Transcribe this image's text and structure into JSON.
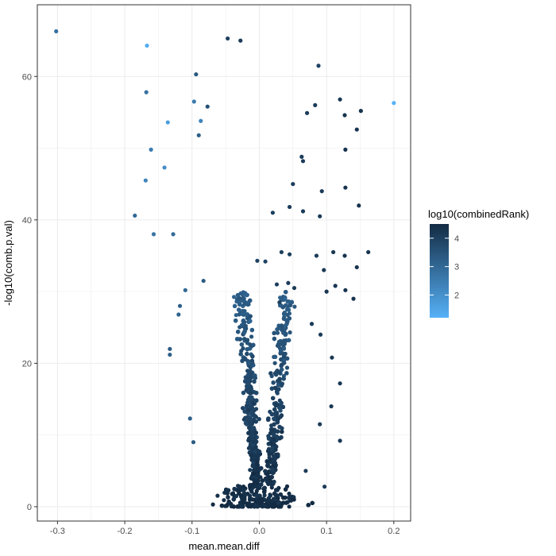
{
  "chart_data": {
    "type": "scatter",
    "title": "",
    "xlabel": "mean.mean.diff",
    "ylabel": "-log10(comb.p.val)",
    "xlim": [
      -0.33,
      0.225
    ],
    "ylim": [
      -2,
      70
    ],
    "x_ticks": [
      -0.3,
      -0.2,
      -0.1,
      0.0,
      0.1,
      0.2
    ],
    "x_tick_labels": [
      "-0.3",
      "-0.2",
      "-0.1",
      "0.0",
      "0.1",
      "0.2"
    ],
    "y_ticks": [
      0,
      20,
      40,
      60
    ],
    "y_tick_labels": [
      "0",
      "20",
      "40",
      "60"
    ],
    "grid": true,
    "legend": {
      "title": "log10(combinedRank)",
      "placement": "right",
      "ticks": [
        2,
        3,
        4
      ],
      "tick_labels": [
        "2",
        "3",
        "4"
      ],
      "range": [
        1.2,
        4.5
      ],
      "color_low": "#56B1F7",
      "color_high": "#132B43"
    },
    "points": [
      {
        "x": -0.302,
        "y": 66.3,
        "c": 2.8
      },
      {
        "x": -0.167,
        "y": 64.3,
        "c": 1.3
      },
      {
        "x": -0.047,
        "y": 65.3,
        "c": 4.0
      },
      {
        "x": -0.028,
        "y": 65.0,
        "c": 4.1
      },
      {
        "x": 0.088,
        "y": 61.5,
        "c": 3.9
      },
      {
        "x": -0.094,
        "y": 60.3,
        "c": 3.4
      },
      {
        "x": 0.2,
        "y": 56.3,
        "c": 1.2
      },
      {
        "x": -0.168,
        "y": 57.8,
        "c": 2.8
      },
      {
        "x": -0.097,
        "y": 56.5,
        "c": 2.5
      },
      {
        "x": -0.077,
        "y": 55.8,
        "c": 3.6
      },
      {
        "x": 0.083,
        "y": 56.0,
        "c": 4.1
      },
      {
        "x": 0.12,
        "y": 56.8,
        "c": 4.2
      },
      {
        "x": 0.151,
        "y": 55.2,
        "c": 4.3
      },
      {
        "x": 0.127,
        "y": 54.6,
        "c": 4.3
      },
      {
        "x": 0.071,
        "y": 54.9,
        "c": 4.1
      },
      {
        "x": -0.136,
        "y": 53.6,
        "c": 1.7
      },
      {
        "x": -0.087,
        "y": 53.8,
        "c": 2.3
      },
      {
        "x": 0.145,
        "y": 52.6,
        "c": 4.3
      },
      {
        "x": -0.09,
        "y": 51.8,
        "c": 3.2
      },
      {
        "x": -0.161,
        "y": 49.8,
        "c": 2.5
      },
      {
        "x": 0.128,
        "y": 49.8,
        "c": 4.3
      },
      {
        "x": -0.141,
        "y": 47.3,
        "c": 2.1
      },
      {
        "x": -0.169,
        "y": 45.5,
        "c": 2.3
      },
      {
        "x": 0.063,
        "y": 48.8,
        "c": 4.1
      },
      {
        "x": 0.065,
        "y": 48.2,
        "c": 4.1
      },
      {
        "x": 0.05,
        "y": 45.0,
        "c": 4.1
      },
      {
        "x": 0.093,
        "y": 44.0,
        "c": 4.1
      },
      {
        "x": 0.128,
        "y": 44.5,
        "c": 4.3
      },
      {
        "x": -0.185,
        "y": 40.6,
        "c": 3.0
      },
      {
        "x": -0.157,
        "y": 38.0,
        "c": 2.7
      },
      {
        "x": -0.128,
        "y": 38.0,
        "c": 2.9
      },
      {
        "x": 0.045,
        "y": 41.8,
        "c": 4.1
      },
      {
        "x": 0.065,
        "y": 41.2,
        "c": 4.1
      },
      {
        "x": 0.09,
        "y": 40.5,
        "c": 4.1
      },
      {
        "x": 0.148,
        "y": 42.0,
        "c": 4.3
      },
      {
        "x": 0.02,
        "y": 41.0,
        "c": 4.0
      },
      {
        "x": 0.033,
        "y": 35.5,
        "c": 4.0
      },
      {
        "x": 0.045,
        "y": 35.2,
        "c": 4.0
      },
      {
        "x": 0.085,
        "y": 35.0,
        "c": 4.1
      },
      {
        "x": 0.11,
        "y": 35.5,
        "c": 4.2
      },
      {
        "x": 0.162,
        "y": 35.5,
        "c": 4.3
      },
      {
        "x": 0.127,
        "y": 35.0,
        "c": 4.3
      },
      {
        "x": 0.009,
        "y": 34.2,
        "c": 3.9
      },
      {
        "x": -0.003,
        "y": 34.3,
        "c": 3.9
      },
      {
        "x": 0.145,
        "y": 33.4,
        "c": 4.3
      },
      {
        "x": 0.096,
        "y": 33.0,
        "c": 4.2
      },
      {
        "x": 0.043,
        "y": 31.2,
        "c": 4.1
      },
      {
        "x": 0.026,
        "y": 31.0,
        "c": 4.0
      },
      {
        "x": 0.113,
        "y": 30.8,
        "c": 4.2
      },
      {
        "x": 0.052,
        "y": 30.5,
        "c": 4.1
      },
      {
        "x": -0.083,
        "y": 31.5,
        "c": 3.3
      },
      {
        "x": -0.11,
        "y": 30.2,
        "c": 3.0
      },
      {
        "x": -0.118,
        "y": 28.0,
        "c": 3.2
      },
      {
        "x": 0.03,
        "y": 28.5,
        "c": 4.0
      },
      {
        "x": 0.14,
        "y": 29.0,
        "c": 4.3
      },
      {
        "x": 0.128,
        "y": 30.2,
        "c": 4.3
      },
      {
        "x": 0.1,
        "y": 30.0,
        "c": 4.2
      },
      {
        "x": -0.12,
        "y": 26.8,
        "c": 3.1
      },
      {
        "x": 0.078,
        "y": 25.5,
        "c": 4.1
      },
      {
        "x": 0.091,
        "y": 24.0,
        "c": 4.1
      },
      {
        "x": -0.133,
        "y": 22.0,
        "c": 3.3
      },
      {
        "x": -0.133,
        "y": 21.2,
        "c": 3.2
      },
      {
        "x": 0.108,
        "y": 20.8,
        "c": 4.2
      },
      {
        "x": 0.12,
        "y": 17.2,
        "c": 4.2
      },
      {
        "x": 0.107,
        "y": 14.0,
        "c": 4.2
      },
      {
        "x": -0.103,
        "y": 12.3,
        "c": 3.2
      },
      {
        "x": 0.09,
        "y": 11.5,
        "c": 4.1
      },
      {
        "x": 0.12,
        "y": 9.2,
        "c": 4.2
      },
      {
        "x": -0.098,
        "y": 9.0,
        "c": 3.3
      },
      {
        "x": 0.097,
        "y": 2.8,
        "c": 4.1
      },
      {
        "x": 0.069,
        "y": 5.0,
        "c": 4.1
      }
    ]
  }
}
